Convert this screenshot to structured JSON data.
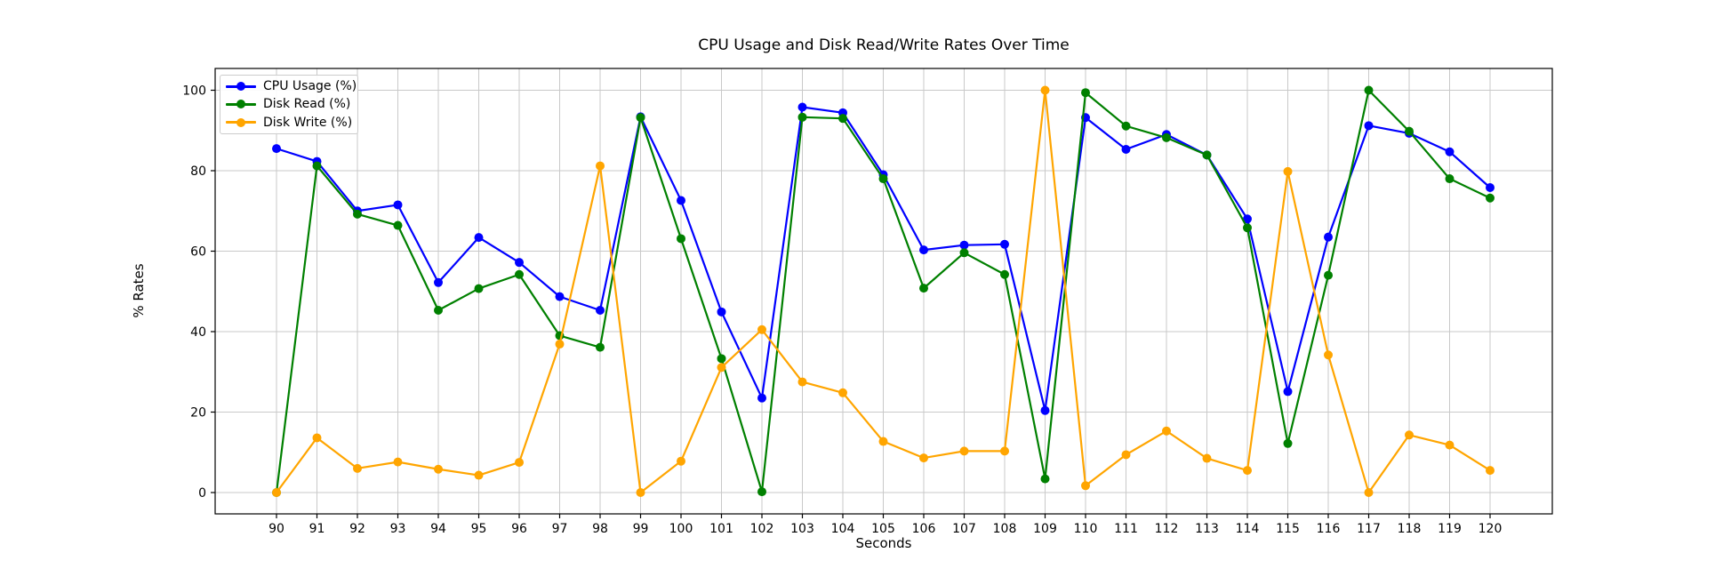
{
  "chart_data": {
    "type": "line",
    "title": "CPU Usage and Disk Read/Write Rates Over Time",
    "xlabel": "Seconds",
    "ylabel": "% Rates",
    "x": [
      90,
      91,
      92,
      93,
      94,
      95,
      96,
      97,
      98,
      99,
      100,
      101,
      102,
      103,
      104,
      105,
      106,
      107,
      108,
      109,
      110,
      111,
      112,
      113,
      114,
      115,
      116,
      117,
      118,
      119,
      120
    ],
    "series": [
      {
        "name": "CPU Usage (%)",
        "color": "#0000ff",
        "values": [
          85.5,
          82.3,
          70.0,
          71.5,
          52.2,
          63.4,
          57.2,
          48.7,
          45.3,
          93.4,
          72.6,
          44.9,
          23.5,
          95.8,
          94.4,
          79.0,
          60.3,
          61.5,
          61.7,
          20.4,
          93.2,
          85.3,
          89.0,
          83.9,
          68.0,
          25.1,
          63.5,
          91.2,
          89.3,
          84.7,
          75.8
        ]
      },
      {
        "name": "Disk Read (%)",
        "color": "#008000",
        "values": [
          0.0,
          81.2,
          69.2,
          66.4,
          45.3,
          50.7,
          54.2,
          39.0,
          36.1,
          93.2,
          63.1,
          33.3,
          0.2,
          93.3,
          93.0,
          78.0,
          50.8,
          59.6,
          54.2,
          3.4,
          99.4,
          91.1,
          88.2,
          83.9,
          65.8,
          12.2,
          54.0,
          100.0,
          89.8,
          78.0,
          73.2
        ]
      },
      {
        "name": "Disk Write (%)",
        "color": "#ffa500",
        "values": [
          0.0,
          13.6,
          6.0,
          7.6,
          5.8,
          4.3,
          7.5,
          36.9,
          81.2,
          0.0,
          7.8,
          31.1,
          40.5,
          27.5,
          24.8,
          12.7,
          8.6,
          10.3,
          10.3,
          100.0,
          1.7,
          9.4,
          15.3,
          8.5,
          5.5,
          79.8,
          34.2,
          0.0,
          14.3,
          11.8,
          5.5
        ]
      }
    ],
    "xticks": [
      90,
      91,
      92,
      93,
      94,
      95,
      96,
      97,
      98,
      99,
      100,
      101,
      102,
      103,
      104,
      105,
      106,
      107,
      108,
      109,
      110,
      111,
      112,
      113,
      114,
      115,
      116,
      117,
      118,
      119,
      120
    ],
    "yticks": [
      0,
      20,
      40,
      60,
      80,
      100
    ],
    "xlim": [
      88.5,
      121.5
    ],
    "ylim": [
      -5.3,
      105.4
    ],
    "grid": true,
    "grid_color": "#c9c9c9",
    "legend_position": "upper left",
    "marker": "circle"
  }
}
